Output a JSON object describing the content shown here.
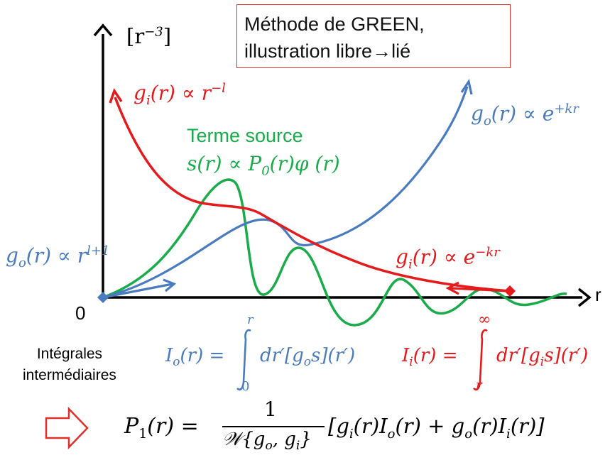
{
  "title": {
    "line1": "Méthode de GREEN,",
    "line2": "illustration libre→lié"
  },
  "y_unit": "[r",
  "y_unit_exp": "−3",
  "y_unit_close": "]",
  "x_axis_label": "r",
  "origin_label": "0",
  "labels": {
    "gi_power_lhs": "g",
    "gi_power_sub": "i",
    "gi_power_mid": "(r) ∝ r",
    "gi_power_exp": "−l",
    "go_exp_lhs": "g",
    "go_exp_sub": "o",
    "go_exp_mid": "(r) ∝ e",
    "go_exp_exp": "+kr",
    "source_title": "Terme source",
    "source_lhs": "s(r) ∝ P",
    "source_sub": "0",
    "source_rhs": "(r)φ (r)",
    "go_power_lhs": "g",
    "go_power_sub": "o",
    "go_power_mid": "(r) ∝ r",
    "go_power_exp": "l+1",
    "gi_exp_lhs": "g",
    "gi_exp_sub": "i",
    "gi_exp_mid": "(r) ∝ e",
    "gi_exp_exp": "−kr"
  },
  "integrals": {
    "caption_line1": "Intégrales",
    "caption_line2": "intermédiaires",
    "Io_lhs": "I",
    "Io_sub": "o",
    "Io_eq": "(r) =",
    "Io_upper": "r",
    "Io_lower": "0",
    "Io_body": "dr′[g",
    "Io_body_sub": "o",
    "Io_body_end": "s](r′)",
    "Ii_lhs": "I",
    "Ii_sub": "i",
    "Ii_eq": "(r) =",
    "Ii_upper": "∞",
    "Ii_lower": "r",
    "Ii_body": "dr′[g",
    "Ii_body_sub": "i",
    "Ii_body_end": "s](r′)"
  },
  "formula": {
    "lhs": "P",
    "lhs_sub": "1",
    "lhs_eq": "(r) =",
    "numerator": "1",
    "denominator": "𝒲{g",
    "den_sub1": "o",
    "den_mid": ", g",
    "den_sub2": "i",
    "den_end": "}",
    "bracket": "[g",
    "b_sub1": "i",
    "b_t1": "(r)I",
    "b_sub2": "o",
    "b_t2": "(r) + g",
    "b_sub3": "o",
    "b_t3": "(r)I",
    "b_sub4": "i",
    "b_t4": "(r)]"
  },
  "colors": {
    "red": "#e41a1c",
    "blue": "#4a7bbf",
    "green": "#1aab4a",
    "black": "#000000",
    "arrow_outline": "#e0302a"
  }
}
